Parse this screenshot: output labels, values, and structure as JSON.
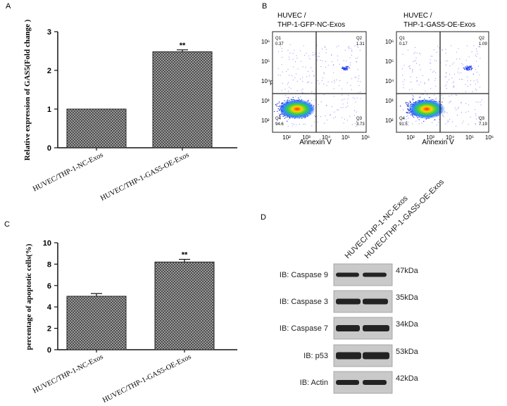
{
  "colors": {
    "bar_fill": "#9a9a9a",
    "frame": "#333333",
    "ink": "#111111",
    "blot_bg": "#c9c9c9",
    "band": "#2a2a2a"
  },
  "chart_data": [
    {
      "panel": "A",
      "type": "bar",
      "categories": [
        "HUVEC/THP-1-NC-Exos",
        "HUVEC/THP-1-GAS5-OE-Exos"
      ],
      "values": [
        1.0,
        2.48
      ],
      "errors": [
        0.0,
        0.05
      ],
      "annotations": [
        "",
        "**"
      ],
      "ylabel": "Relative expression of GAS5(Fold change )",
      "ylim": [
        0,
        3
      ],
      "yticks": [
        0,
        1,
        2,
        3
      ]
    },
    {
      "panel": "C",
      "type": "bar",
      "categories": [
        "HUVEC/THP-1-NC-Exos",
        "HUVEC/THP-1-GAS5-OE-Exos"
      ],
      "values": [
        5.0,
        8.2
      ],
      "errors": [
        0.25,
        0.25
      ],
      "annotations": [
        "",
        "**"
      ],
      "ylabel": "percentage of apoptotic cells(%)",
      "ylim": [
        0,
        10
      ],
      "yticks": [
        0,
        2,
        4,
        6,
        8,
        10
      ]
    },
    {
      "panel": "B",
      "type": "scatter",
      "xlabel": "Annexin V",
      "ylabel": "PI",
      "xticks": [
        "10²",
        "10³",
        "10⁴",
        "10⁵",
        "10⁶"
      ],
      "yticks": [
        "10²",
        "10³",
        "10⁴",
        "10⁵",
        "10⁶"
      ],
      "plots": [
        {
          "title_line1": "HUVEC /",
          "title_line2": "THP-1-GFP-NC-Exos",
          "quadrants": {
            "Q1": "0.37",
            "Q2": "1.31",
            "Q3": "3.73",
            "Q4": "94.6"
          }
        },
        {
          "title_line1": "HUVEC /",
          "title_line2": "THP-1-GAS5-OE-Exos",
          "quadrants": {
            "Q1": "0.17",
            "Q2": "1.09",
            "Q3": "7.19",
            "Q4": "91.5"
          }
        }
      ]
    },
    {
      "panel": "D",
      "type": "table",
      "lanes": [
        "HUVEC/THP-1-NC-Exos",
        "HUVEC/THP-1-GAS5-OE-Exos"
      ],
      "rows": [
        {
          "label": "IB: Caspase 9",
          "size": "47kDa"
        },
        {
          "label": "IB: Caspase 3",
          "size": "35kDa"
        },
        {
          "label": "IB: Caspase 7",
          "size": "34kDa"
        },
        {
          "label": "IB: p53",
          "size": "53kDa"
        },
        {
          "label": "IB: Actin",
          "size": "42kDa"
        }
      ]
    }
  ],
  "panel_letters": {
    "a": "A",
    "b": "B",
    "c": "C",
    "d": "D"
  }
}
